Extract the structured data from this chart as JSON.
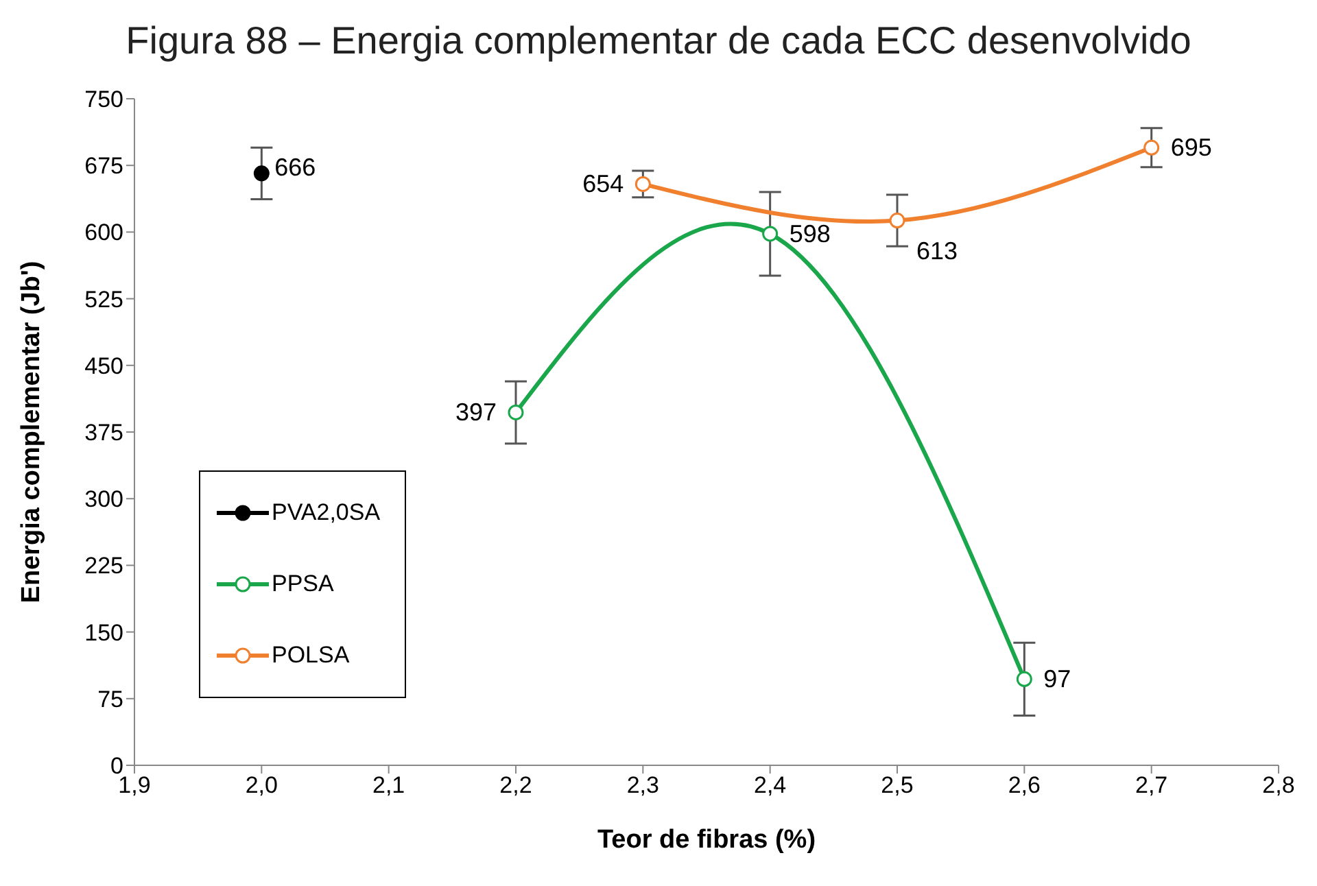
{
  "chart_data": {
    "type": "line",
    "title": "Figura 88 – Energia complementar de cada ECC desenvolvido",
    "xlabel": "Teor de fibras (%)",
    "ylabel": "Energia complementar (Jb')",
    "xlim": [
      1.9,
      2.8
    ],
    "xticks": [
      {
        "value": 1.9,
        "label": "1,9"
      },
      {
        "value": 2.0,
        "label": "2,0"
      },
      {
        "value": 2.1,
        "label": "2,1"
      },
      {
        "value": 2.2,
        "label": "2,2"
      },
      {
        "value": 2.3,
        "label": "2,3"
      },
      {
        "value": 2.4,
        "label": "2,4"
      },
      {
        "value": 2.5,
        "label": "2,5"
      },
      {
        "value": 2.6,
        "label": "2,6"
      },
      {
        "value": 2.7,
        "label": "2,7"
      },
      {
        "value": 2.8,
        "label": "2,8"
      }
    ],
    "ylim": [
      0,
      750
    ],
    "yticks": [
      0,
      75,
      150,
      225,
      300,
      375,
      450,
      525,
      600,
      675,
      750
    ],
    "marker": "circle",
    "legend": "left",
    "data_labels": true,
    "series": [
      {
        "name": "PVA2,0SA",
        "type": "scatter",
        "color": "#000000",
        "x": [
          2.0
        ],
        "values": [
          666
        ],
        "errors": [
          29
        ]
      },
      {
        "name": "PPSA",
        "color": "#1aa64a",
        "x": [
          2.2,
          2.4,
          2.6
        ],
        "values": [
          397,
          598,
          97
        ],
        "errors": [
          35,
          47,
          41
        ]
      },
      {
        "name": "POLSA",
        "color": "#f07f2e",
        "x": [
          2.3,
          2.5,
          2.7
        ],
        "values": [
          654,
          613,
          695
        ],
        "errors": [
          15,
          29,
          22
        ]
      }
    ]
  }
}
